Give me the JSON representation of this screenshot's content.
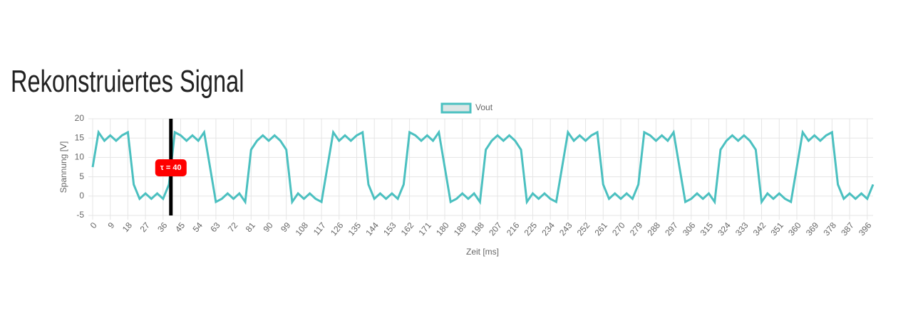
{
  "chart_data": {
    "type": "line",
    "title": "Rekonstruiertes Signal",
    "xlabel": "Zeit [ms]",
    "ylabel": "Spannung [V]",
    "categories": [
      0,
      null,
      null,
      9,
      null,
      null,
      18,
      null,
      null,
      27,
      null,
      null,
      36,
      null,
      null,
      45,
      null,
      null,
      54,
      null,
      null,
      63,
      null,
      null,
      72,
      null,
      null,
      81,
      null,
      null,
      90,
      null,
      null,
      99,
      null,
      null,
      108,
      null,
      null,
      117,
      null,
      null,
      126,
      null,
      null,
      135,
      null,
      null,
      144,
      null,
      null,
      153,
      null,
      null,
      162,
      null,
      null,
      171,
      null,
      null,
      180,
      null,
      null,
      189,
      null,
      null,
      198,
      null,
      null,
      207,
      null,
      null,
      216,
      null,
      null,
      225,
      null,
      null,
      234,
      null,
      null,
      243,
      null,
      null,
      252,
      null,
      null,
      261,
      null,
      null,
      270,
      null,
      null,
      279,
      null,
      null,
      288,
      null,
      null,
      297,
      null,
      null,
      306,
      null,
      null,
      315,
      null,
      null,
      324,
      null,
      null,
      333,
      null,
      null,
      342,
      null,
      null,
      351,
      null,
      null,
      360,
      null,
      null,
      369,
      null,
      null,
      378,
      null,
      null,
      387,
      null,
      null,
      396,
      null
    ],
    "series": [
      {
        "name": "Vout",
        "color": "#4bc0c0",
        "values": [
          7.5,
          16.5,
          14.3,
          15.7,
          14.3,
          15.7,
          16.5,
          3,
          -0.7,
          0.7,
          -0.7,
          0.7,
          -0.7,
          3,
          16.5,
          15.7,
          14.3,
          15.7,
          14.3,
          16.5,
          7.5,
          -1.5,
          -0.7,
          0.7,
          -0.7,
          0.7,
          -1.5,
          12,
          14.3,
          15.7,
          14.3,
          15.7,
          14.3,
          12,
          -1.5,
          0.7,
          -0.7,
          0.7,
          -0.7,
          -1.5,
          7.5,
          16.5,
          14.3,
          15.7,
          14.3,
          15.7,
          16.5,
          3,
          -0.7,
          0.7,
          -0.7,
          0.7,
          -0.7,
          3,
          16.5,
          15.7,
          14.3,
          15.7,
          14.3,
          16.5,
          7.5,
          -1.5,
          -0.7,
          0.7,
          -0.7,
          0.7,
          -1.5,
          12,
          14.3,
          15.7,
          14.3,
          15.7,
          14.3,
          12,
          -1.5,
          0.7,
          -0.7,
          0.7,
          -0.7,
          -1.5,
          7.5,
          16.5,
          14.3,
          15.7,
          14.3,
          15.7,
          16.5,
          3,
          -0.7,
          0.7,
          -0.7,
          0.7,
          -0.7,
          3,
          16.5,
          15.7,
          14.3,
          15.7,
          14.3,
          16.5,
          7.5,
          -1.5,
          -0.7,
          0.7,
          -0.7,
          0.7,
          -1.5,
          12,
          14.3,
          15.7,
          14.3,
          15.7,
          14.3,
          12,
          -1.5,
          0.7,
          -0.7,
          0.7,
          -0.7,
          -1.5,
          7.5,
          16.5,
          14.3,
          15.7,
          14.3,
          15.7,
          16.5,
          3,
          -0.7,
          0.7,
          -0.7,
          0.7,
          -0.7,
          3
        ]
      }
    ],
    "ylim": [
      -5,
      20
    ],
    "yticks": [
      -5,
      0,
      5,
      10,
      15,
      20
    ],
    "grid": true,
    "legend": "top",
    "annotation": {
      "value": 40,
      "label": "τ = 40",
      "color": "#000000",
      "label_color": "#ff0000"
    }
  }
}
